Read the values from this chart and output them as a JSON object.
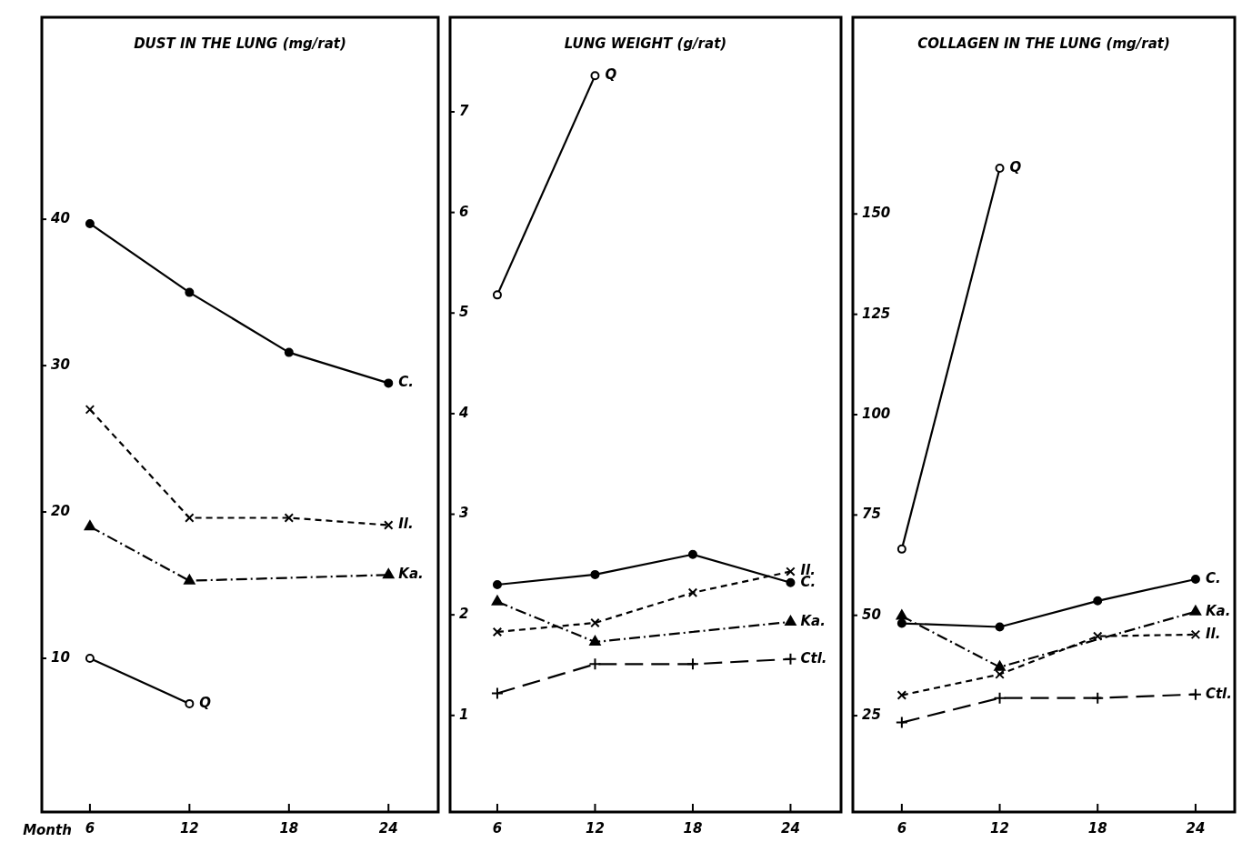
{
  "chart_data": [
    {
      "type": "line",
      "title": "DUST IN THE LUNG (mg/rat)",
      "xlabel": "Month",
      "x": [
        6,
        12,
        18,
        24
      ],
      "xlim": [
        3.1,
        27
      ],
      "xticks": [
        6,
        12,
        18,
        24
      ],
      "ylim": [
        -0.5,
        53.8
      ],
      "yticks": [
        10,
        20,
        30,
        40
      ],
      "series": [
        {
          "name": "C.",
          "color": "#000000",
          "marker": "circle",
          "line_style": "solid",
          "values": [
            39.7,
            35.0,
            30.9,
            28.8
          ]
        },
        {
          "name": "Il.",
          "color": "#000000",
          "marker": "cross",
          "line_style": "dashed",
          "values": [
            27.0,
            19.6,
            19.6,
            19.1
          ]
        },
        {
          "name": "Ka.",
          "color": "#000000",
          "marker": "triangle",
          "line_style": "dashdot",
          "values": [
            19.0,
            15.3,
            null,
            15.7
          ]
        },
        {
          "name": "Q",
          "color": "#000000",
          "marker": "circle-open",
          "line_style": "solid",
          "values": [
            10.0,
            6.9,
            null,
            null
          ]
        }
      ]
    },
    {
      "type": "line",
      "title": "LUNG WEIGHT (g/rat)",
      "x": [
        6,
        12,
        18,
        24
      ],
      "xlim": [
        3.1,
        27.1
      ],
      "xticks": [
        6,
        12,
        18,
        24
      ],
      "ylim": [
        0.04,
        7.94
      ],
      "yticks": [
        1,
        2,
        3,
        4,
        5,
        6,
        7
      ],
      "series": [
        {
          "name": "Q",
          "color": "#000000",
          "marker": "circle-open",
          "line_style": "solid",
          "values": [
            5.18,
            7.36,
            null,
            null
          ]
        },
        {
          "name": "Il.",
          "color": "#000000",
          "marker": "cross",
          "line_style": "dashed",
          "values": [
            1.83,
            1.92,
            2.22,
            2.43
          ]
        },
        {
          "name": "C.",
          "color": "#000000",
          "marker": "circle",
          "line_style": "solid",
          "values": [
            2.3,
            2.4,
            2.6,
            2.32
          ]
        },
        {
          "name": "Ka.",
          "color": "#000000",
          "marker": "triangle",
          "line_style": "dashdot",
          "values": [
            2.13,
            1.73,
            null,
            1.93
          ]
        },
        {
          "name": "Ctl.",
          "color": "#000000",
          "marker": "plus",
          "line_style": "longdash",
          "values": [
            1.22,
            1.51,
            1.51,
            1.56
          ]
        }
      ]
    },
    {
      "type": "line",
      "title": "COLLAGEN IN THE LUNG (mg/rat)",
      "x": [
        6,
        12,
        18,
        24
      ],
      "xlim": [
        3.0,
        26.4
      ],
      "xticks": [
        6,
        12,
        18,
        24
      ],
      "ylim": [
        1,
        199
      ],
      "yticks": [
        25,
        50,
        75,
        100,
        125,
        150
      ],
      "series": [
        {
          "name": "Q",
          "color": "#000000",
          "marker": "circle-open",
          "line_style": "solid",
          "values": [
            66.5,
            161.4,
            null,
            null
          ]
        },
        {
          "name": "C.",
          "color": "#000000",
          "marker": "circle",
          "line_style": "solid",
          "values": [
            48.0,
            47.1,
            53.6,
            59.0
          ]
        },
        {
          "name": "Ka.",
          "color": "#000000",
          "marker": "triangle",
          "line_style": "dashdot",
          "values": [
            49.8,
            37.1,
            null,
            50.9
          ]
        },
        {
          "name": "Il.",
          "color": "#000000",
          "marker": "cross",
          "line_style": "dashed",
          "values": [
            30.1,
            35.3,
            44.8,
            45.2
          ]
        },
        {
          "name": "Ctl.",
          "color": "#000000",
          "marker": "plus",
          "line_style": "longdash",
          "values": [
            23.3,
            29.4,
            29.4,
            30.3
          ]
        }
      ]
    }
  ]
}
